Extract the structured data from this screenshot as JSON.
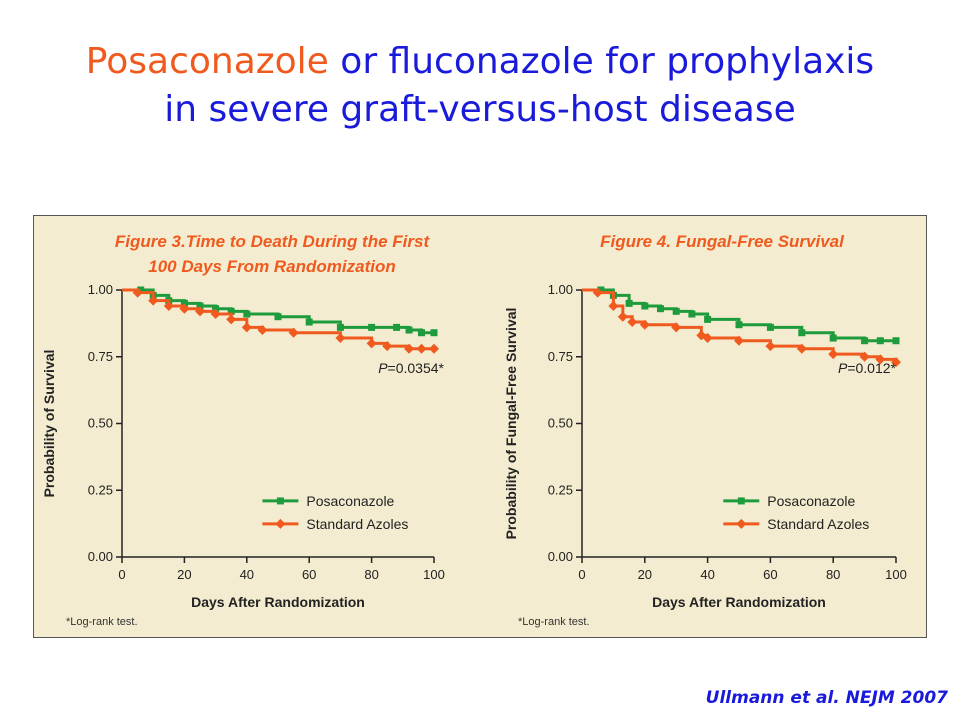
{
  "slide": {
    "title_accent": "Posaconazole",
    "title_rest_line1": " or fluconazole for prophylaxis",
    "title_line2": "in severe graft-versus-host disease",
    "citation": "Ullmann et al. NEJM 2007"
  },
  "colors": {
    "series1": "#1e9b3c",
    "series2": "#f05a1e",
    "panel_bg": "#f3ecd0"
  },
  "chart_data": [
    {
      "type": "line",
      "title_lines": [
        "Figure 3.Time to Death During the First",
        "100 Days From Randomization"
      ],
      "xlabel": "Days After Randomization",
      "ylabel": "Probability of Survival",
      "xlim": [
        0,
        100
      ],
      "ylim": [
        0,
        1
      ],
      "xticks": [
        "0",
        "20",
        "40",
        "60",
        "80",
        "100"
      ],
      "yticks": [
        "0.00",
        "0.25",
        "0.50",
        "0.75",
        "1.00"
      ],
      "grid": false,
      "legend_position": "bottom-right",
      "annotation": {
        "prefix": "P",
        "text": "=0.0354*"
      },
      "footnote": "*Log-rank test.",
      "series": [
        {
          "name": "Posaconazole",
          "color": "#1e9b3c",
          "points": [
            [
              0,
              1.0
            ],
            [
              6,
              1.0
            ],
            [
              10,
              0.98
            ],
            [
              15,
              0.96
            ],
            [
              20,
              0.95
            ],
            [
              25,
              0.94
            ],
            [
              30,
              0.93
            ],
            [
              35,
              0.92
            ],
            [
              40,
              0.91
            ],
            [
              50,
              0.9
            ],
            [
              60,
              0.88
            ],
            [
              70,
              0.86
            ],
            [
              80,
              0.86
            ],
            [
              88,
              0.86
            ],
            [
              92,
              0.85
            ],
            [
              96,
              0.84
            ],
            [
              100,
              0.84
            ]
          ]
        },
        {
          "name": "Standard Azoles",
          "color": "#f05a1e",
          "points": [
            [
              0,
              1.0
            ],
            [
              5,
              0.99
            ],
            [
              10,
              0.96
            ],
            [
              15,
              0.94
            ],
            [
              20,
              0.93
            ],
            [
              25,
              0.92
            ],
            [
              30,
              0.91
            ],
            [
              35,
              0.89
            ],
            [
              40,
              0.86
            ],
            [
              45,
              0.85
            ],
            [
              55,
              0.84
            ],
            [
              70,
              0.82
            ],
            [
              80,
              0.8
            ],
            [
              85,
              0.79
            ],
            [
              92,
              0.78
            ],
            [
              96,
              0.78
            ],
            [
              100,
              0.78
            ]
          ]
        }
      ]
    },
    {
      "type": "line",
      "title_lines": [
        "Figure 4. Fungal-Free Survival"
      ],
      "xlabel": "Days After Randomization",
      "ylabel": "Probability of Fungal-Free Survival",
      "xlim": [
        0,
        100
      ],
      "ylim": [
        0,
        1
      ],
      "xticks": [
        "0",
        "20",
        "40",
        "60",
        "80",
        "100"
      ],
      "yticks": [
        "0.00",
        "0.25",
        "0.50",
        "0.75",
        "1.00"
      ],
      "grid": false,
      "legend_position": "bottom-right",
      "annotation": {
        "prefix": "P",
        "text": "=0.012*"
      },
      "footnote": "*Log-rank test.",
      "series": [
        {
          "name": "Posaconazole",
          "color": "#1e9b3c",
          "points": [
            [
              0,
              1.0
            ],
            [
              6,
              1.0
            ],
            [
              10,
              0.98
            ],
            [
              15,
              0.95
            ],
            [
              20,
              0.94
            ],
            [
              25,
              0.93
            ],
            [
              30,
              0.92
            ],
            [
              35,
              0.91
            ],
            [
              40,
              0.89
            ],
            [
              50,
              0.87
            ],
            [
              60,
              0.86
            ],
            [
              70,
              0.84
            ],
            [
              80,
              0.82
            ],
            [
              90,
              0.81
            ],
            [
              95,
              0.81
            ],
            [
              100,
              0.81
            ]
          ]
        },
        {
          "name": "Standard Azoles",
          "color": "#f05a1e",
          "points": [
            [
              0,
              1.0
            ],
            [
              5,
              0.99
            ],
            [
              10,
              0.94
            ],
            [
              13,
              0.9
            ],
            [
              16,
              0.88
            ],
            [
              20,
              0.87
            ],
            [
              30,
              0.86
            ],
            [
              38,
              0.83
            ],
            [
              40,
              0.82
            ],
            [
              50,
              0.81
            ],
            [
              60,
              0.79
            ],
            [
              70,
              0.78
            ],
            [
              80,
              0.76
            ],
            [
              90,
              0.75
            ],
            [
              95,
              0.74
            ],
            [
              100,
              0.73
            ]
          ]
        }
      ]
    }
  ]
}
